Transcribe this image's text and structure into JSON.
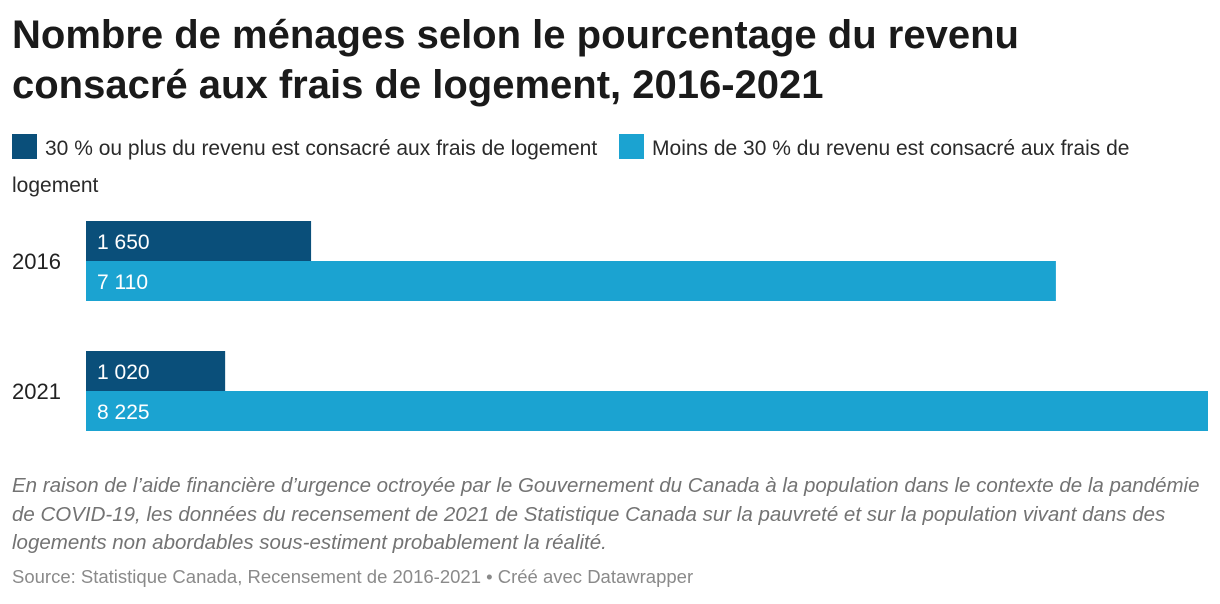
{
  "title": "Nombre de ménages selon le pourcentage du revenu consacré aux frais de logement, 2016-2021",
  "legend": [
    {
      "label": "30 % ou plus du revenu est consacré aux frais de logement",
      "color": "#0a4f7a"
    },
    {
      "label": "Moins de 30 % du revenu est consacré aux frais de logement",
      "color": "#1ba3d1"
    }
  ],
  "chart_data": {
    "type": "bar",
    "orientation": "horizontal",
    "categories": [
      "2016",
      "2021"
    ],
    "series": [
      {
        "name": "30 % ou plus du revenu est consacré aux frais de logement",
        "values": [
          1650,
          1020
        ],
        "labels": [
          "1 650",
          "1 020"
        ],
        "color": "#0a4f7a"
      },
      {
        "name": "Moins de 30 % du revenu est consacré aux frais de logement",
        "values": [
          7110,
          8225
        ],
        "labels": [
          "7 110",
          "8 225"
        ],
        "color": "#1ba3d1"
      }
    ],
    "xlim": [
      0,
      8225
    ],
    "grid": false,
    "legend_position": "top"
  },
  "note": "En raison de l’aide financière d’urgence octroyée par le Gouvernement du Canada à la population dans le contexte de la pandémie de COVID-19, les données du recensement de 2021 de Statistique Canada sur la pauvreté et sur la population vivant dans des logements non abordables sous-estiment probablement la réalité.",
  "source": "Source: Statistique Canada, Recensement de 2016-2021 • Créé avec Datawrapper"
}
